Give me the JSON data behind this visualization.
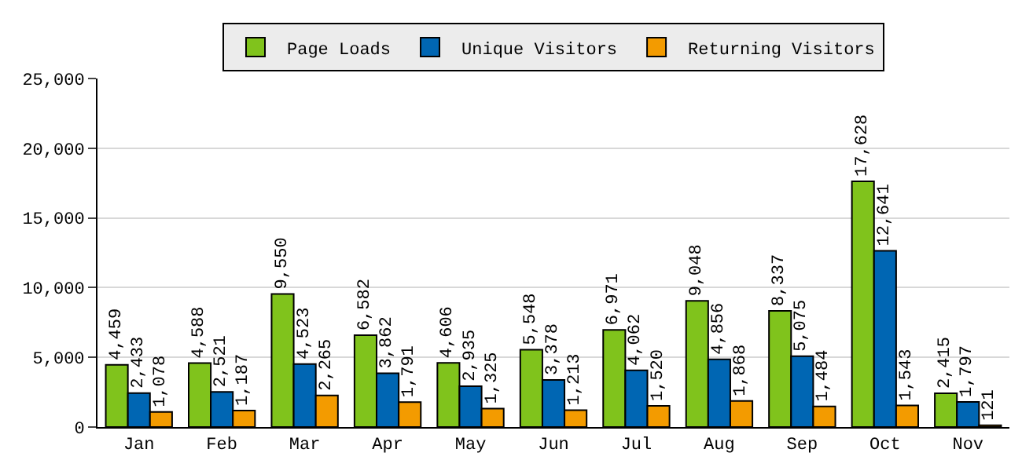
{
  "chart_data": {
    "type": "bar",
    "categories": [
      "Jan",
      "Feb",
      "Mar",
      "Apr",
      "May",
      "Jun",
      "Jul",
      "Aug",
      "Sep",
      "Oct",
      "Nov"
    ],
    "series": [
      {
        "name": "Page Loads",
        "color": "#80c31c",
        "values": [
          4459,
          4588,
          9550,
          6582,
          4606,
          5548,
          6971,
          9048,
          8337,
          17628,
          2415
        ],
        "value_labels": [
          "4,459",
          "4,588",
          "9,550",
          "6,582",
          "4,606",
          "5,548",
          "6,971",
          "9,048",
          "8,337",
          "17,628",
          "2,415"
        ]
      },
      {
        "name": "Unique Visitors",
        "color": "#0066b3",
        "values": [
          2433,
          2521,
          4523,
          3862,
          2935,
          3378,
          4062,
          4856,
          5075,
          12641,
          1797
        ],
        "value_labels": [
          "2,433",
          "2,521",
          "4,523",
          "3,862",
          "2,935",
          "3,378",
          "4,062",
          "4,856",
          "5,075",
          "12,641",
          "1,797"
        ]
      },
      {
        "name": "Returning Visitors",
        "color": "#f39b00",
        "values": [
          1078,
          1187,
          2265,
          1791,
          1325,
          1213,
          1520,
          1868,
          1484,
          1543,
          121
        ],
        "value_labels": [
          "1,078",
          "1,187",
          "2,265",
          "1,791",
          "1,325",
          "1,213",
          "1,520",
          "1,868",
          "1,484",
          "1,543",
          "121"
        ]
      }
    ],
    "ylim": [
      0,
      25000
    ],
    "yticks": [
      {
        "value": 0,
        "label": "0"
      },
      {
        "value": 5000,
        "label": "5,000"
      },
      {
        "value": 10000,
        "label": "10,000"
      },
      {
        "value": 15000,
        "label": "15,000"
      },
      {
        "value": 20000,
        "label": "20,000"
      },
      {
        "value": 25000,
        "label": "25,000"
      }
    ],
    "grid": "y",
    "legend": "top"
  }
}
